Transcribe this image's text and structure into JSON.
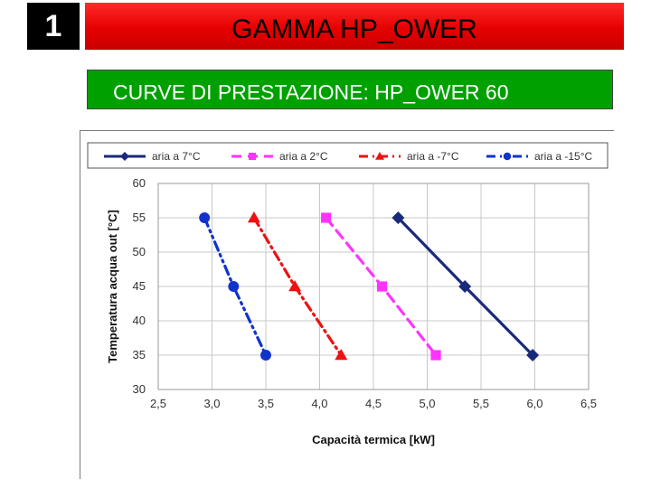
{
  "slide": {
    "number": "1",
    "title": "GAMMA HP_OWER",
    "subtitle": "CURVE DI PRESTAZIONE: HP_OWER 60"
  },
  "colors": {
    "title_bar": "#e60000",
    "subtitle_bar": "#00a000",
    "series": [
      "#1a2a7a",
      "#ff33ff",
      "#ee1111",
      "#1133cc"
    ]
  },
  "chart_data": {
    "type": "line",
    "xlabel": "Capacità termica [kW]",
    "ylabel": "Temperatura acqua out [°C]",
    "xlim": [
      2.5,
      6.5
    ],
    "ylim": [
      30,
      60
    ],
    "x_ticks": [
      "2,5",
      "3,0",
      "3,5",
      "4,0",
      "4,5",
      "5,0",
      "5,5",
      "6,0",
      "6,5"
    ],
    "y_ticks": [
      "30",
      "35",
      "40",
      "45",
      "50",
      "55",
      "60"
    ],
    "grid": true,
    "legend_position": "top",
    "series": [
      {
        "name": "aria a 7°C",
        "marker": "diamond",
        "dash": "solid",
        "x": [
          4.73,
          5.35,
          5.98
        ],
        "y": [
          55,
          45,
          35
        ]
      },
      {
        "name": "aria a 2°C",
        "marker": "square",
        "dash": "dash",
        "x": [
          4.06,
          4.58,
          5.08
        ],
        "y": [
          55,
          45,
          35
        ]
      },
      {
        "name": "aria a -7°C",
        "marker": "triangle",
        "dash": "dashdot",
        "x": [
          3.39,
          3.77,
          4.2
        ],
        "y": [
          55,
          45,
          35
        ]
      },
      {
        "name": "aria a -15°C",
        "marker": "circle",
        "dash": "dashdotdot",
        "x": [
          2.93,
          3.2,
          3.5
        ],
        "y": [
          55,
          45,
          35
        ]
      }
    ]
  }
}
